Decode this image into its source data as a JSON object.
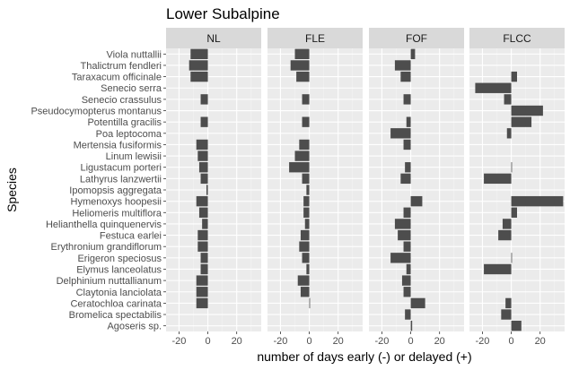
{
  "chart_data": {
    "type": "bar",
    "orientation": "horizontal",
    "title": "Lower Subalpine",
    "xlabel": "number of days early (-) or delayed (+)",
    "ylabel": "Species",
    "xlim": [
      -29,
      37
    ],
    "xticks": [
      -20,
      0,
      20
    ],
    "grid": true,
    "legend": "none",
    "colors": {
      "bar": "#4d4d4d",
      "panel_bg": "#ebebeb",
      "strip_bg": "#d9d9d9",
      "grid_major": "#ffffff",
      "grid_minor": "#f4f4f4",
      "text": "#000000",
      "axis_text": "#4d4d4d"
    },
    "categories": [
      "Viola nuttallii",
      "Thalictrum fendleri",
      "Taraxacum officinale",
      "Senecio serra",
      "Senecio crassulus",
      "Pseudocymopterus montanus",
      "Potentilla gracilis",
      "Poa leptocoma",
      "Mertensia fusiformis",
      "Linum lewisii",
      "Ligustacum porteri",
      "Lathyrus lanzwertii",
      "Ipomopsis aggregata",
      "Hymenoxys hoopesii",
      "Heliomeris multiflora",
      "Helianthella quinquenervis",
      "Festuca earlei",
      "Erythronium grandiflorum",
      "Erigeron speciosus",
      "Elymus lanceolatus",
      "Delphinium nuttallianum",
      "Claytonia lanciolata",
      "Ceratochloa carinata",
      "Bromelica spectabilis",
      "Agoseris sp."
    ],
    "series": [
      {
        "name": "NL",
        "values": [
          -12,
          -13,
          -12,
          null,
          -5,
          null,
          -5,
          null,
          -8,
          -7,
          -6,
          -5,
          -1,
          -8,
          -6,
          -4,
          -7,
          -7,
          -5,
          -5,
          -8,
          -8,
          -8,
          null,
          null
        ]
      },
      {
        "name": "FLE",
        "values": [
          -10,
          -13,
          -9,
          null,
          -5,
          null,
          -5,
          null,
          -7,
          -10,
          -14,
          -5,
          -2,
          -4,
          -4,
          -3,
          -6,
          -7,
          -5,
          -2,
          -8,
          -6,
          0,
          null,
          null
        ]
      },
      {
        "name": "FOF",
        "values": [
          3,
          -11,
          -7,
          null,
          -5,
          null,
          -3,
          -14,
          -5,
          null,
          -4,
          -7,
          null,
          8,
          -5,
          -11,
          -9,
          -5,
          -14,
          -3,
          -6,
          -5,
          10,
          -4,
          1
        ]
      },
      {
        "name": "FLCC",
        "values": [
          null,
          null,
          4,
          -25,
          -5,
          22,
          14,
          -3,
          null,
          null,
          0,
          -19,
          null,
          36,
          4,
          -6,
          -9,
          null,
          0,
          -19,
          null,
          null,
          -4,
          -7,
          7
        ]
      }
    ]
  }
}
